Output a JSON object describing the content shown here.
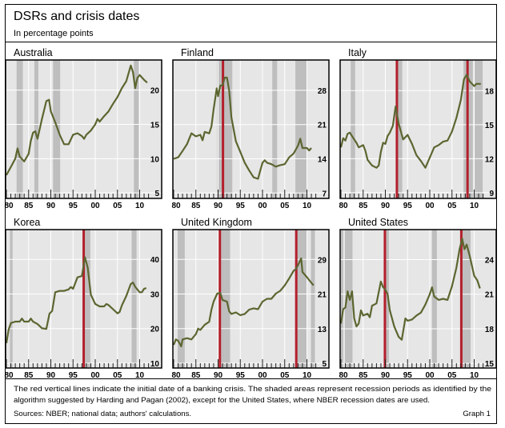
{
  "title": "DSRs and crisis dates",
  "subtitle": "In percentage points",
  "footnote_line1": "The red vertical lines indicate the initial date of a banking crisis. The shaded areas represent recession periods as identified by the",
  "footnote_line2": "algorithm suggested by Harding and Pagan (2002), except for the United States, where NBER recession dates are used.",
  "sources": "Sources: NBER; national data; authors' calculations.",
  "graph_label": "Graph 1",
  "colors": {
    "series": "#5b6630",
    "crisis": "#b3202c",
    "recession": "#bebebe",
    "plot_bg": "#e6e6e6",
    "grid": "#ffffff"
  },
  "chart_data": [
    {
      "type": "line",
      "title": "Australia",
      "xlim": [
        1980,
        2013
      ],
      "ylim": [
        4.2,
        24.4
      ],
      "x_tick_labels": [
        "80",
        "85",
        "90",
        "95",
        "00",
        "05",
        "10"
      ],
      "x_ticks": [
        1980,
        1985,
        1990,
        1995,
        2000,
        2005,
        2010
      ],
      "y_ticks": [
        5,
        10,
        15,
        20
      ],
      "y_tick_labels": [
        "5",
        "10",
        "15",
        "20"
      ],
      "y_axis": "right",
      "grid": true,
      "recessions": [
        [
          1982.3,
          1983.7
        ],
        [
          1986.3,
          1987.2
        ],
        [
          1990.5,
          1992.1
        ],
        [
          2008.7,
          2009.8
        ]
      ],
      "crises": [],
      "x": [
        1980,
        1981,
        1982,
        1982.5,
        1983,
        1984,
        1985,
        1985.5,
        1986,
        1986.5,
        1987,
        1988,
        1989,
        1989.6,
        1990,
        1991,
        1992,
        1993,
        1994,
        1995,
        1996,
        1997,
        1997.5,
        1998,
        1999,
        2000,
        2000.5,
        2001,
        2002,
        2003,
        2004,
        2005,
        2006,
        2007,
        2008,
        2008.5,
        2009,
        2009.5,
        2010,
        2011,
        2011.7
      ],
      "y": [
        7.6,
        8.8,
        10,
        11.5,
        10.3,
        9.6,
        10.7,
        12.6,
        13.8,
        14,
        12.9,
        15.8,
        18.4,
        18.6,
        16.9,
        15.3,
        13.5,
        12.1,
        12.1,
        13.5,
        13.7,
        13.3,
        12.9,
        13.5,
        14.1,
        15,
        15.8,
        15.4,
        16.2,
        16.9,
        18,
        19,
        20.3,
        21.3,
        23.6,
        22.6,
        20.3,
        21.8,
        22.2,
        21.5,
        21.1
      ]
    },
    {
      "type": "line",
      "title": "Finland",
      "xlim": [
        1980,
        2013
      ],
      "ylim": [
        5.9,
        34.2
      ],
      "x_tick_labels": [
        "80",
        "85",
        "90",
        "95",
        "00",
        "05",
        "10"
      ],
      "x_ticks": [
        1980,
        1985,
        1990,
        1995,
        2000,
        2005,
        2010
      ],
      "y_ticks": [
        7,
        14,
        21,
        28
      ],
      "y_tick_labels": [
        "7",
        "14",
        "21",
        "28"
      ],
      "y_axis": "right",
      "grid": true,
      "recessions": [
        [
          1989.8,
          1993.2
        ],
        [
          2002.2,
          2003.3
        ],
        [
          2007.4,
          2009.9
        ]
      ],
      "crises": [
        1991.1
      ],
      "x": [
        1980,
        1981,
        1982,
        1983,
        1984,
        1985,
        1986,
        1986.5,
        1987,
        1988,
        1988.5,
        1989,
        1989.7,
        1990,
        1990.5,
        1991,
        1991.5,
        1992,
        1992.5,
        1993,
        1994,
        1995,
        1996,
        1997,
        1998,
        1999,
        1999.5,
        2000,
        2000.5,
        2001,
        2002,
        2003,
        2004,
        2005,
        2006,
        2007,
        2008,
        2008.5,
        2009,
        2010,
        2010.5,
        2011
      ],
      "y": [
        14,
        14.3,
        15.6,
        17,
        19.2,
        18.6,
        18.9,
        17.8,
        19.5,
        19.2,
        20.6,
        24.1,
        28.4,
        26.8,
        29,
        29,
        30.6,
        30.6,
        27.9,
        22.5,
        17.6,
        15.4,
        13.2,
        11.6,
        10.2,
        9.9,
        11.6,
        13.2,
        13.7,
        13.2,
        12.9,
        12.4,
        12.7,
        12.9,
        14.3,
        15.1,
        16.7,
        18.1,
        16.2,
        16.2,
        15.7,
        16.2
      ]
    },
    {
      "type": "line",
      "title": "Italy",
      "xlim": [
        1980,
        2013
      ],
      "ylim": [
        8.5,
        20.7
      ],
      "x_tick_labels": [
        "80",
        "85",
        "90",
        "95",
        "00",
        "05",
        "10"
      ],
      "x_ticks": [
        1980,
        1985,
        1990,
        1995,
        2000,
        2005,
        2010
      ],
      "y_ticks": [
        9,
        12,
        15,
        18
      ],
      "y_tick_labels": [
        "9",
        "12",
        "15",
        "18"
      ],
      "y_axis": "right",
      "grid": true,
      "recessions": [
        [
          1982.2,
          1983.2
        ],
        [
          1992.7,
          1993.8
        ],
        [
          2007.6,
          2009.7
        ],
        [
          2010.1,
          2011.9
        ]
      ],
      "crises": [
        1992.6,
        2008.5
      ],
      "x": [
        1980,
        1980.5,
        1981,
        1981.5,
        1982,
        1983,
        1983.5,
        1984,
        1985,
        1985.5,
        1986,
        1987,
        1988,
        1988.5,
        1989,
        1989.5,
        1990,
        1990.5,
        1991,
        1991.7,
        1992.3,
        1993,
        1994,
        1995,
        1996,
        1997,
        1998,
        1999,
        2000,
        2001,
        2002,
        2003,
        2004,
        2005,
        2006,
        2007,
        2007.7,
        2008.3,
        2009,
        2010,
        2010.5,
        2011.5
      ],
      "y": [
        13,
        13.8,
        13.6,
        14.2,
        14.3,
        13.7,
        13.4,
        13,
        13.2,
        12.7,
        11.9,
        11.4,
        11.2,
        11.4,
        12.6,
        13.4,
        13.3,
        14,
        14.3,
        14.9,
        16.6,
        15.1,
        13.7,
        14.1,
        13.3,
        12.3,
        11.8,
        11.2,
        12.1,
        13,
        13.2,
        13.5,
        13.6,
        14.4,
        15.6,
        17.2,
        19,
        19.4,
        18.8,
        18.4,
        18.6,
        18.6
      ]
    },
    {
      "type": "line",
      "title": "Korea",
      "xlim": [
        1980,
        2013
      ],
      "ylim": [
        8.6,
        48.6
      ],
      "x_tick_labels": [
        "80",
        "85",
        "90",
        "95",
        "00",
        "05",
        "10"
      ],
      "x_ticks": [
        1980,
        1985,
        1990,
        1995,
        2000,
        2005,
        2010
      ],
      "y_ticks": [
        10,
        20,
        30,
        40
      ],
      "y_tick_labels": [
        "10",
        "20",
        "30",
        "40"
      ],
      "y_axis": "right",
      "grid": true,
      "recessions": [
        [
          1980.8,
          1981.4
        ],
        [
          1997.6,
          1998.9
        ],
        [
          2008.2,
          2009.3
        ]
      ],
      "crises": [
        1997.4
      ],
      "x": [
        1980,
        1980.5,
        1981,
        1982,
        1983,
        1983.5,
        1984,
        1985,
        1985.5,
        1986,
        1987,
        1988,
        1989,
        1989.7,
        1990.3,
        1991,
        1992,
        1993,
        1994,
        1994.5,
        1995,
        1996,
        1997,
        1997.7,
        1998.3,
        1999,
        2000,
        2001,
        2002,
        2002.5,
        2003,
        2004,
        2005,
        2005.5,
        2006,
        2007,
        2008,
        2008.5,
        2009,
        2010,
        2010.5,
        2011,
        2011.5
      ],
      "y": [
        15.8,
        19.7,
        21.6,
        22,
        22,
        22.9,
        22,
        22,
        22.9,
        22,
        21.3,
        20.1,
        19.9,
        24.3,
        25.1,
        30.5,
        30.9,
        30.9,
        31.3,
        32,
        31.5,
        34.8,
        35.2,
        40.6,
        37.6,
        29.8,
        27.1,
        26.4,
        26.4,
        27.1,
        26.8,
        25.6,
        24.4,
        24.8,
        26.7,
        29.4,
        32.9,
        33.3,
        32.1,
        30.5,
        30.5,
        31.5,
        31.7
      ]
    },
    {
      "type": "line",
      "title": "United Kingdom",
      "xlim": [
        1980,
        2013
      ],
      "ylim": [
        3.9,
        35.9
      ],
      "x_tick_labels": [
        "80",
        "85",
        "90",
        "95",
        "00",
        "05",
        "10"
      ],
      "x_ticks": [
        1980,
        1985,
        1990,
        1995,
        2000,
        2005,
        2010
      ],
      "y_ticks": [
        5,
        13,
        21,
        29
      ],
      "y_tick_labels": [
        "5",
        "13",
        "21",
        "29"
      ],
      "y_axis": "right",
      "grid": true,
      "recessions": [
        [
          1980.9,
          1982.5
        ],
        [
          1990.5,
          1992.7
        ],
        [
          2007.8,
          2010
        ],
        [
          2010.9,
          2011.8
        ]
      ],
      "crises": [
        1990.4,
        2007.6
      ],
      "x": [
        1980,
        1980.5,
        1981,
        1981.7,
        1982,
        1983,
        1984,
        1985,
        1985.5,
        1986,
        1987,
        1988,
        1988.5,
        1989,
        1989.8,
        1990.5,
        1991,
        1992,
        1992.5,
        1993,
        1994,
        1995,
        1996,
        1997,
        1998,
        1999,
        2000,
        2001,
        2002,
        2003,
        2004,
        2005,
        2006,
        2007,
        2007.5,
        2008,
        2008.7,
        2009,
        2010,
        2011,
        2011.5
      ],
      "y": [
        9.25,
        10.5,
        10.2,
        8.9,
        10.5,
        10.8,
        10.5,
        11.75,
        13,
        12.7,
        13.9,
        14.6,
        17.4,
        19.25,
        21.1,
        21.25,
        19.6,
        19.25,
        17,
        16.4,
        16.75,
        16.1,
        16.4,
        17.4,
        17.7,
        17.5,
        19.25,
        19.9,
        19.9,
        21.1,
        21.75,
        23,
        24.6,
        26.4,
        26.75,
        27.7,
        29.25,
        26.1,
        24.9,
        23.6,
        23
      ]
    },
    {
      "type": "line",
      "title": "United States",
      "xlim": [
        1980,
        2013
      ],
      "ylim": [
        14.6,
        26.6
      ],
      "x_tick_labels": [
        "80",
        "85",
        "90",
        "95",
        "00",
        "05",
        "10"
      ],
      "x_ticks": [
        1980,
        1985,
        1990,
        1995,
        2000,
        2005,
        2010
      ],
      "y_ticks": [
        15,
        18,
        21,
        24
      ],
      "y_tick_labels": [
        "15",
        "18",
        "21",
        "24"
      ],
      "y_axis": "right",
      "grid": true,
      "recessions": [
        [
          1980,
          1980.5
        ],
        [
          1980.9,
          1982.6
        ],
        [
          1989.9,
          1990.8
        ],
        [
          2000.5,
          2001.6
        ],
        [
          2007.3,
          2009.2
        ]
      ],
      "crises": [
        1989.9,
        2007.1
      ],
      "x": [
        1980,
        1980.5,
        1981,
        1981.5,
        1982,
        1982.5,
        1983,
        1983.5,
        1984,
        1984.5,
        1985,
        1986,
        1986.5,
        1987,
        1988,
        1989,
        1989.5,
        1990,
        1990.5,
        1991,
        1992,
        1993,
        1993.7,
        1994.5,
        1995,
        1996,
        1997,
        1998,
        1999,
        2000,
        2000.5,
        2001,
        2002,
        2003,
        2004,
        2005,
        2006,
        2006.7,
        2007.3,
        2007.8,
        2008.3,
        2009,
        2010,
        2010.7,
        2011.3
      ],
      "y": [
        18.45,
        19.7,
        19.85,
        21.25,
        20.5,
        21.25,
        18.9,
        18.2,
        18.45,
        19.6,
        19.15,
        19.3,
        19,
        20,
        20.2,
        22.1,
        21.6,
        21.4,
        21,
        19.6,
        18.2,
        17.3,
        17.05,
        18.9,
        18.7,
        18.8,
        19.15,
        19.4,
        20.1,
        21,
        21.6,
        20.8,
        20.5,
        20.6,
        20.5,
        21.7,
        23.3,
        24.9,
        25.8,
        24.9,
        25.3,
        24.3,
        22.6,
        22.2,
        21.5
      ]
    }
  ]
}
